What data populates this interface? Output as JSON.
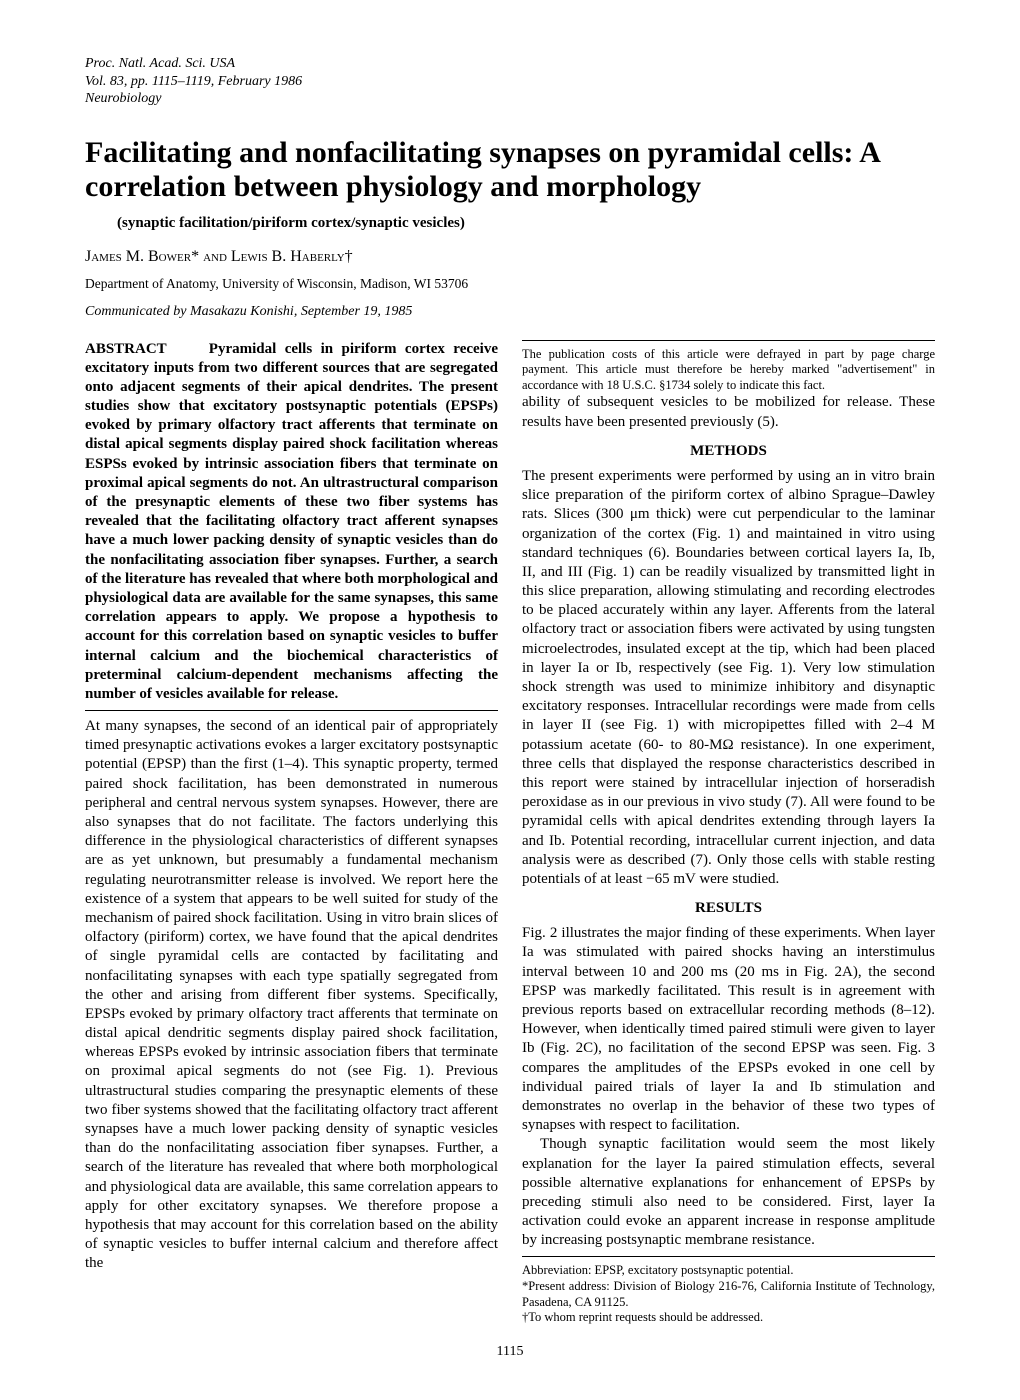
{
  "header": {
    "line1": "Proc. Natl. Acad. Sci. USA",
    "line2": "Vol. 83, pp. 1115–1119, February 1986",
    "line3": "Neurobiology"
  },
  "title": "Facilitating and nonfacilitating synapses on pyramidal cells: A correlation between physiology and morphology",
  "subtitle": "(synaptic facilitation/piriform cortex/synaptic vesicles)",
  "authors": "James M. Bower* and Lewis B. Haberly†",
  "affiliation": "Department of Anatomy, University of Wisconsin, Madison, WI 53706",
  "communicated": "Communicated by Masakazu Konishi, September 19, 1985",
  "abstract_label": "ABSTRACT",
  "abstract_body": "Pyramidal cells in piriform cortex receive excitatory inputs from two different sources that are segregated onto adjacent segments of their apical dendrites. The present studies show that excitatory postsynaptic potentials (EPSPs) evoked by primary olfactory tract afferents that terminate on distal apical segments display paired shock facilitation whereas ESPSs evoked by intrinsic association fibers that terminate on proximal apical segments do not. An ultrastructural comparison of the presynaptic elements of these two fiber systems has revealed that the facilitating olfactory tract afferent synapses have a much lower packing density of synaptic vesicles than do the nonfacilitating association fiber synapses. Further, a search of the literature has revealed that where both morphological and physiological data are available for the same synapses, this same correlation appears to apply. We propose a hypothesis to account for this correlation based on synaptic vesicles to buffer internal calcium and the biochemical characteristics of preterminal calcium-dependent mechanisms affecting the number of vesicles available for release.",
  "intro": "At many synapses, the second of an identical pair of appropriately timed presynaptic activations evokes a larger excitatory postsynaptic potential (EPSP) than the first (1–4). This synaptic property, termed paired shock facilitation, has been demonstrated in numerous peripheral and central nervous system synapses. However, there are also synapses that do not facilitate. The factors underlying this difference in the physiological characteristics of different synapses are as yet unknown, but presumably a fundamental mechanism regulating neurotransmitter release is involved. We report here the existence of a system that appears to be well suited for study of the mechanism of paired shock facilitation. Using in vitro brain slices of olfactory (piriform) cortex, we have found that the apical dendrites of single pyramidal cells are contacted by facilitating and nonfacilitating synapses with each type spatially segregated from the other and arising from different fiber systems. Specifically, EPSPs evoked by primary olfactory tract afferents that terminate on distal apical dendritic segments display paired shock facilitation, whereas EPSPs evoked by intrinsic association fibers that terminate on proximal apical segments do not (see Fig. 1). Previous ultrastructural studies comparing the presynaptic elements of these two fiber systems showed that the facilitating olfactory tract afferent synapses have a much lower packing density of synaptic vesicles than do the nonfacilitating association fiber synapses. Further, a search of the literature has revealed that where both morphological and physiological data are available, this same correlation appears to apply for other excitatory synapses. We therefore propose a hypothesis that may account for this correlation based on the ability of synaptic vesicles to buffer internal calcium and therefore affect the",
  "pubnote": "The publication costs of this article were defrayed in part by page charge payment. This article must therefore be hereby marked \"advertisement\" in accordance with 18 U.S.C. §1734 solely to indicate this fact.",
  "col2_lead": "ability of subsequent vesicles to be mobilized for release. These results have been presented previously (5).",
  "methods_head": "METHODS",
  "methods_body": "The present experiments were performed by using an in vitro brain slice preparation of the piriform cortex of albino Sprague–Dawley rats. Slices (300 μm thick) were cut perpendicular to the laminar organization of the cortex (Fig. 1) and maintained in vitro using standard techniques (6). Boundaries between cortical layers Ia, Ib, II, and III (Fig. 1) can be readily visualized by transmitted light in this slice preparation, allowing stimulating and recording electrodes to be placed accurately within any layer. Afferents from the lateral olfactory tract or association fibers were activated by using tungsten microelectrodes, insulated except at the tip, which had been placed in layer Ia or Ib, respectively (see Fig. 1). Very low stimulation shock strength was used to minimize inhibitory and disynaptic excitatory responses. Intracellular recordings were made from cells in layer II (see Fig. 1) with micropipettes filled with 2–4 M potassium acetate (60- to 80-MΩ resistance). In one experiment, three cells that displayed the response characteristics described in this report were stained by intracellular injection of horseradish peroxidase as in our previous in vivo study (7). All were found to be pyramidal cells with apical dendrites extending through layers Ia and Ib. Potential recording, intracellular current injection, and data analysis were as described (7). Only those cells with stable resting potentials of at least −65 mV were studied.",
  "results_head": "RESULTS",
  "results_p1": "Fig. 2 illustrates the major finding of these experiments. When layer Ia was stimulated with paired shocks having an interstimulus interval between 10 and 200 ms (20 ms in Fig. 2A), the second EPSP was markedly facilitated. This result is in agreement with previous reports based on extracellular recording methods (8–12). However, when identically timed paired stimuli were given to layer Ib (Fig. 2C), no facilitation of the second EPSP was seen. Fig. 3 compares the amplitudes of the EPSPs evoked in one cell by individual paired trials of layer Ia and Ib stimulation and demonstrates no overlap in the behavior of these two types of synapses with respect to facilitation.",
  "results_p2": "Though synaptic facilitation would seem the most likely explanation for the layer Ia paired stimulation effects, several possible alternative explanations for enhancement of EPSPs by preceding stimuli also need to be considered. First, layer Ia activation could evoke an apparent increase in response amplitude by increasing postsynaptic membrane resistance.",
  "foot_abbrev": "Abbreviation: EPSP, excitatory postsynaptic potential.",
  "foot_star": "*Present address: Division of Biology 216-76, California Institute of Technology, Pasadena, CA 91125.",
  "foot_dagger": "†To whom reprint requests should be addressed.",
  "pagenum": "1115"
}
